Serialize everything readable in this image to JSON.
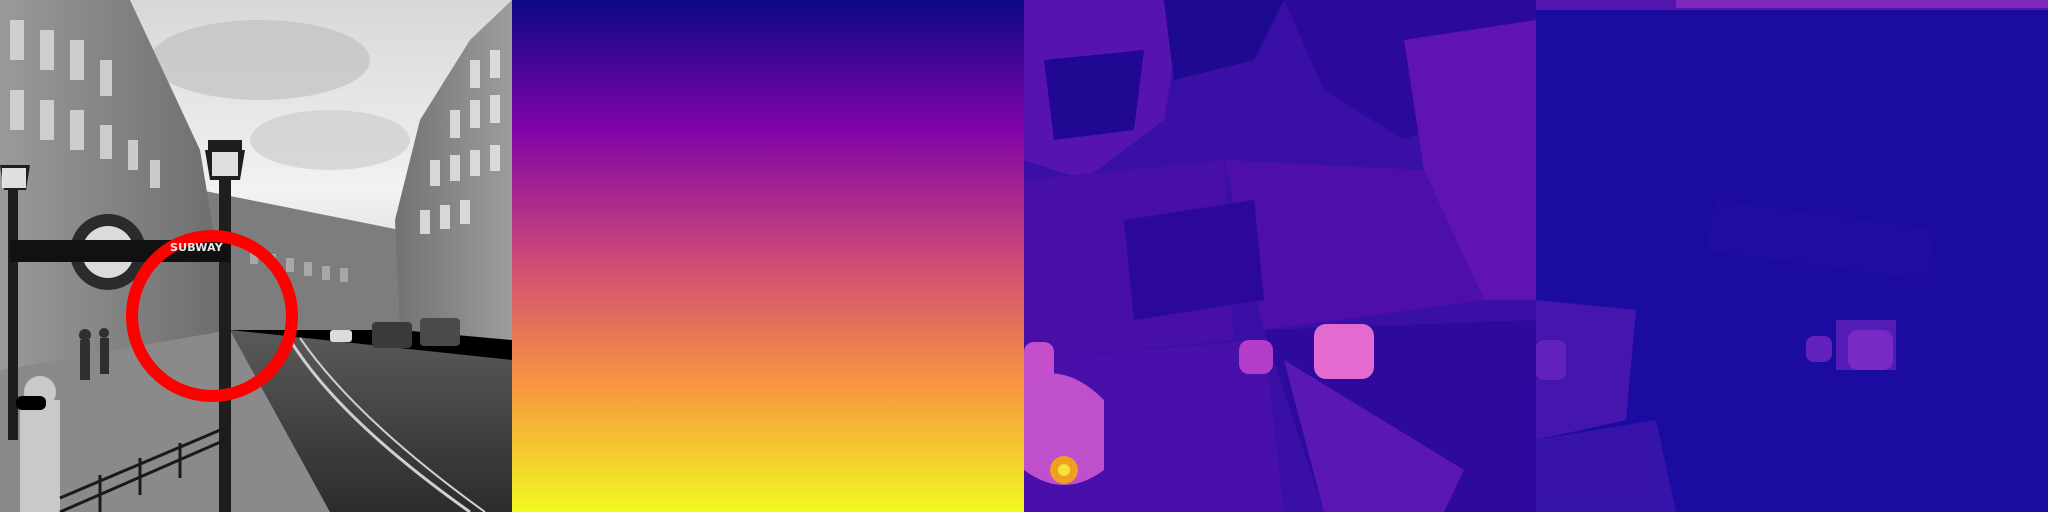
{
  "panels": [
    {
      "id": "photo",
      "kind": "grayscale street photograph"
    },
    {
      "id": "depth-gradient",
      "kind": "depth map"
    },
    {
      "id": "error-map-1",
      "kind": "heatmap"
    },
    {
      "id": "error-map-2",
      "kind": "heatmap"
    }
  ],
  "photo": {
    "sign_text": "SUBWAY",
    "marker_color": "#ff0000"
  },
  "colors": {
    "plasma_top": "#0d0887",
    "plasma_mid1": "#7e03a8",
    "plasma_mid2": "#cc4778",
    "plasma_mid3": "#f89540",
    "plasma_bottom": "#f0f921",
    "heatmap_base": "#2a0aa6",
    "heatmap_hot": "#e36bd0"
  }
}
